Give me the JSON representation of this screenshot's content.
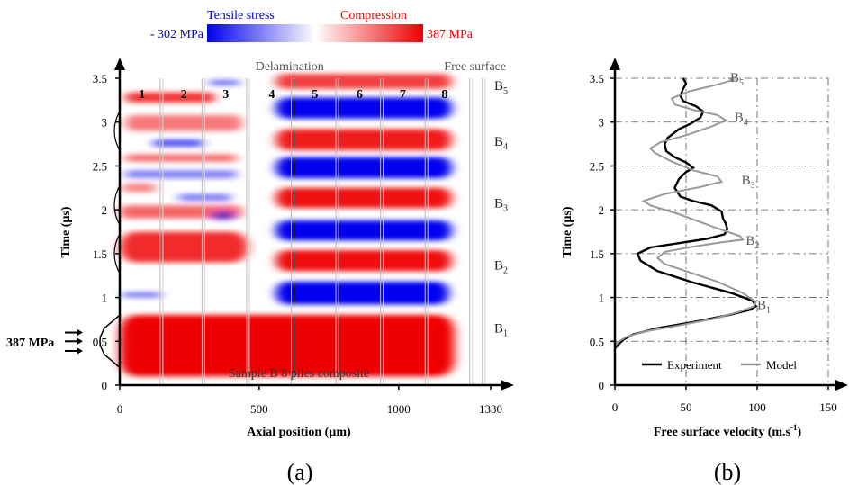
{
  "chart_data": [
    {
      "type": "heatmap",
      "panel_label": "(a)",
      "xlabel": "Axial position (µm)",
      "ylabel": "Time (µs)",
      "x_ticks": [
        0,
        500,
        1000,
        1330
      ],
      "x_tick_labels": [
        "0",
        "500",
        "1000",
        "1330"
      ],
      "y_ticks": [
        0,
        0.5,
        1,
        1.5,
        2,
        2.5,
        3,
        3.5
      ],
      "y_tick_labels": [
        "0",
        "0.5",
        "1",
        "1.5",
        "2",
        "2.5",
        "3",
        "3.5"
      ],
      "xlim": [
        0,
        1330
      ],
      "ylim": [
        0,
        3.5
      ],
      "colorbar": {
        "left_title": "Tensile stress",
        "right_title": "Compression",
        "min_label": "- 302 MPa",
        "max_label": "387 MPa",
        "min": -302,
        "max": 387,
        "color_tensile": "#0000ee",
        "color_compression": "#ee0000"
      },
      "ply_labels": [
        "1",
        "2",
        "3",
        "4",
        "5",
        "6",
        "7",
        "8"
      ],
      "ply_label_x": [
        80,
        230,
        380,
        545,
        700,
        860,
        1015,
        1165
      ],
      "ply_boundaries_x": [
        145,
        295,
        455,
        615,
        775,
        935,
        1095,
        1255,
        1300
      ],
      "annotations": {
        "delamination": "Delamination",
        "delamination_x": 480,
        "free_surface": "Free surface",
        "free_surface_x": 1300,
        "sample": "Sample B 8 plies composite",
        "input_pulse": "387 MPa"
      },
      "echo_labels": [
        {
          "label": "B",
          "sub": "1",
          "t": 0.65
        },
        {
          "label": "B",
          "sub": "2",
          "t": 1.37
        },
        {
          "label": "B",
          "sub": "3",
          "t": 2.08
        },
        {
          "label": "B",
          "sub": "4",
          "t": 2.78
        },
        {
          "label": "B",
          "sub": "5",
          "t": 3.42
        }
      ],
      "input_pulse": {
        "t": [
          0.2,
          0.35,
          0.45,
          0.5,
          0.55,
          0.65,
          0.8
        ],
        "stress_mpa": [
          0,
          300,
          380,
          387,
          380,
          300,
          0
        ]
      },
      "stress_bands": [
        {
          "type": "compression",
          "x0": 0,
          "x1": 1200,
          "t_start": 0.1,
          "t_end": 0.8,
          "peak_mpa": 387
        },
        {
          "type": "tension",
          "x0": 10,
          "x1": 150,
          "t_start": 1.0,
          "t_end": 1.06,
          "peak_mpa": -120
        },
        {
          "type": "compression",
          "x0": 0,
          "x1": 460,
          "t_start": 1.4,
          "t_end": 1.75,
          "peak_mpa": 300
        },
        {
          "type": "compression",
          "x0": 0,
          "x1": 440,
          "t_start": 1.9,
          "t_end": 2.05,
          "peak_mpa": 180
        },
        {
          "type": "compression",
          "x0": 10,
          "x1": 130,
          "t_start": 2.2,
          "t_end": 2.3,
          "peak_mpa": 120
        },
        {
          "type": "tension",
          "x0": 330,
          "x1": 410,
          "t_start": 1.88,
          "t_end": 1.98,
          "peak_mpa": -130
        },
        {
          "type": "tension",
          "x0": 210,
          "x1": 400,
          "t_start": 2.1,
          "t_end": 2.18,
          "peak_mpa": -110
        },
        {
          "type": "tension",
          "x0": 20,
          "x1": 420,
          "t_start": 2.36,
          "t_end": 2.45,
          "peak_mpa": -100
        },
        {
          "type": "compression",
          "x0": 20,
          "x1": 420,
          "t_start": 2.55,
          "t_end": 2.63,
          "peak_mpa": 180
        },
        {
          "type": "tension",
          "x0": 120,
          "x1": 300,
          "t_start": 2.72,
          "t_end": 2.8,
          "peak_mpa": -180
        },
        {
          "type": "compression",
          "x0": 20,
          "x1": 440,
          "t_start": 2.9,
          "t_end": 3.08,
          "peak_mpa": 140
        },
        {
          "type": "compression",
          "x0": 20,
          "x1": 340,
          "t_start": 3.22,
          "t_end": 3.34,
          "peak_mpa": 280
        },
        {
          "type": "tension",
          "x0": 320,
          "x1": 430,
          "t_start": 3.42,
          "t_end": 3.48,
          "peak_mpa": -140
        },
        {
          "type": "tension",
          "x0": 560,
          "x1": 1180,
          "t_start": 0.92,
          "t_end": 1.18,
          "peak_mpa": -302
        },
        {
          "type": "compression",
          "x0": 560,
          "x1": 1190,
          "t_start": 1.3,
          "t_end": 1.54,
          "peak_mpa": 360
        },
        {
          "type": "tension",
          "x0": 560,
          "x1": 1190,
          "t_start": 1.65,
          "t_end": 1.88,
          "peak_mpa": -300
        },
        {
          "type": "compression",
          "x0": 560,
          "x1": 1190,
          "t_start": 2.02,
          "t_end": 2.25,
          "peak_mpa": 350
        },
        {
          "type": "tension",
          "x0": 560,
          "x1": 1190,
          "t_start": 2.36,
          "t_end": 2.6,
          "peak_mpa": -300
        },
        {
          "type": "compression",
          "x0": 560,
          "x1": 1190,
          "t_start": 2.68,
          "t_end": 2.92,
          "peak_mpa": 330
        },
        {
          "type": "tension",
          "x0": 560,
          "x1": 1190,
          "t_start": 3.04,
          "t_end": 3.28,
          "peak_mpa": -300
        },
        {
          "type": "compression",
          "x0": 560,
          "x1": 1190,
          "t_start": 3.38,
          "t_end": 3.55,
          "peak_mpa": 260
        }
      ]
    },
    {
      "type": "line",
      "panel_label": "(b)",
      "xlabel": "Free surface velocity (m.s",
      "xlabel_sup": "-1",
      "xlabel_close": ")",
      "ylabel": "Time (µs)",
      "x_ticks": [
        0,
        50,
        100,
        150
      ],
      "x_tick_labels": [
        "0",
        "50",
        "100",
        "150"
      ],
      "y_ticks": [
        0,
        0.5,
        1,
        1.5,
        2,
        2.5,
        3,
        3.5
      ],
      "y_tick_labels": [
        "0",
        "0.5",
        "1",
        "1.5",
        "2",
        "2.5",
        "3",
        "3.5"
      ],
      "xlim": [
        0,
        150
      ],
      "ylim": [
        0,
        3.5
      ],
      "grid": "dashed",
      "legend_position": "bottom",
      "echo_labels": [
        {
          "label": "B",
          "sub": "1",
          "v": 100,
          "t": 0.92
        },
        {
          "label": "B",
          "sub": "2",
          "v": 92,
          "t": 1.65
        },
        {
          "label": "B",
          "sub": "3",
          "v": 89,
          "t": 2.34
        },
        {
          "label": "B",
          "sub": "4",
          "v": 84,
          "t": 3.06
        },
        {
          "label": "B",
          "sub": "5",
          "v": 81,
          "t": 3.51
        }
      ],
      "series": [
        {
          "name": "Experiment",
          "color": "#000000",
          "points": [
            [
              0,
              0.42
            ],
            [
              3,
              0.47
            ],
            [
              6,
              0.52
            ],
            [
              13,
              0.58
            ],
            [
              30,
              0.65
            ],
            [
              55,
              0.72
            ],
            [
              80,
              0.8
            ],
            [
              95,
              0.86
            ],
            [
              99,
              0.9
            ],
            [
              97,
              0.96
            ],
            [
              82,
              1.05
            ],
            [
              55,
              1.17
            ],
            [
              30,
              1.3
            ],
            [
              18,
              1.42
            ],
            [
              16,
              1.5
            ],
            [
              25,
              1.57
            ],
            [
              45,
              1.62
            ],
            [
              65,
              1.67
            ],
            [
              77,
              1.72
            ],
            [
              79,
              1.78
            ],
            [
              78,
              1.84
            ],
            [
              76,
              1.9
            ],
            [
              75,
              1.98
            ],
            [
              68,
              2.05
            ],
            [
              55,
              2.1
            ],
            [
              46,
              2.15
            ],
            [
              42,
              2.25
            ],
            [
              45,
              2.35
            ],
            [
              50,
              2.43
            ],
            [
              55,
              2.48
            ],
            [
              50,
              2.54
            ],
            [
              42,
              2.6
            ],
            [
              36,
              2.67
            ],
            [
              35,
              2.75
            ],
            [
              37,
              2.82
            ],
            [
              45,
              2.92
            ],
            [
              53,
              2.98
            ],
            [
              60,
              3.05
            ],
            [
              62,
              3.12
            ],
            [
              57,
              3.18
            ],
            [
              48,
              3.24
            ],
            [
              46,
              3.3
            ],
            [
              48,
              3.38
            ],
            [
              50,
              3.44
            ],
            [
              48,
              3.5
            ]
          ]
        },
        {
          "name": "Model",
          "color": "#999999",
          "points": [
            [
              0,
              0.46
            ],
            [
              3,
              0.5
            ],
            [
              8,
              0.55
            ],
            [
              20,
              0.61
            ],
            [
              45,
              0.68
            ],
            [
              70,
              0.76
            ],
            [
              88,
              0.84
            ],
            [
              98,
              0.9
            ],
            [
              99,
              0.95
            ],
            [
              90,
              1.05
            ],
            [
              72,
              1.18
            ],
            [
              50,
              1.3
            ],
            [
              35,
              1.38
            ],
            [
              30,
              1.45
            ],
            [
              35,
              1.52
            ],
            [
              55,
              1.58
            ],
            [
              75,
              1.63
            ],
            [
              90,
              1.66
            ],
            [
              88,
              1.7
            ],
            [
              70,
              1.8
            ],
            [
              45,
              1.95
            ],
            [
              25,
              2.05
            ],
            [
              20,
              2.1
            ],
            [
              35,
              2.18
            ],
            [
              60,
              2.26
            ],
            [
              75,
              2.32
            ],
            [
              72,
              2.38
            ],
            [
              55,
              2.45
            ],
            [
              40,
              2.55
            ],
            [
              28,
              2.65
            ],
            [
              25,
              2.7
            ],
            [
              32,
              2.77
            ],
            [
              50,
              2.85
            ],
            [
              68,
              2.95
            ],
            [
              78,
              3.02
            ],
            [
              72,
              3.08
            ],
            [
              55,
              3.14
            ],
            [
              42,
              3.2
            ],
            [
              40,
              3.27
            ],
            [
              52,
              3.35
            ],
            [
              70,
              3.42
            ],
            [
              83,
              3.48
            ],
            [
              80,
              3.5
            ]
          ]
        }
      ]
    }
  ]
}
